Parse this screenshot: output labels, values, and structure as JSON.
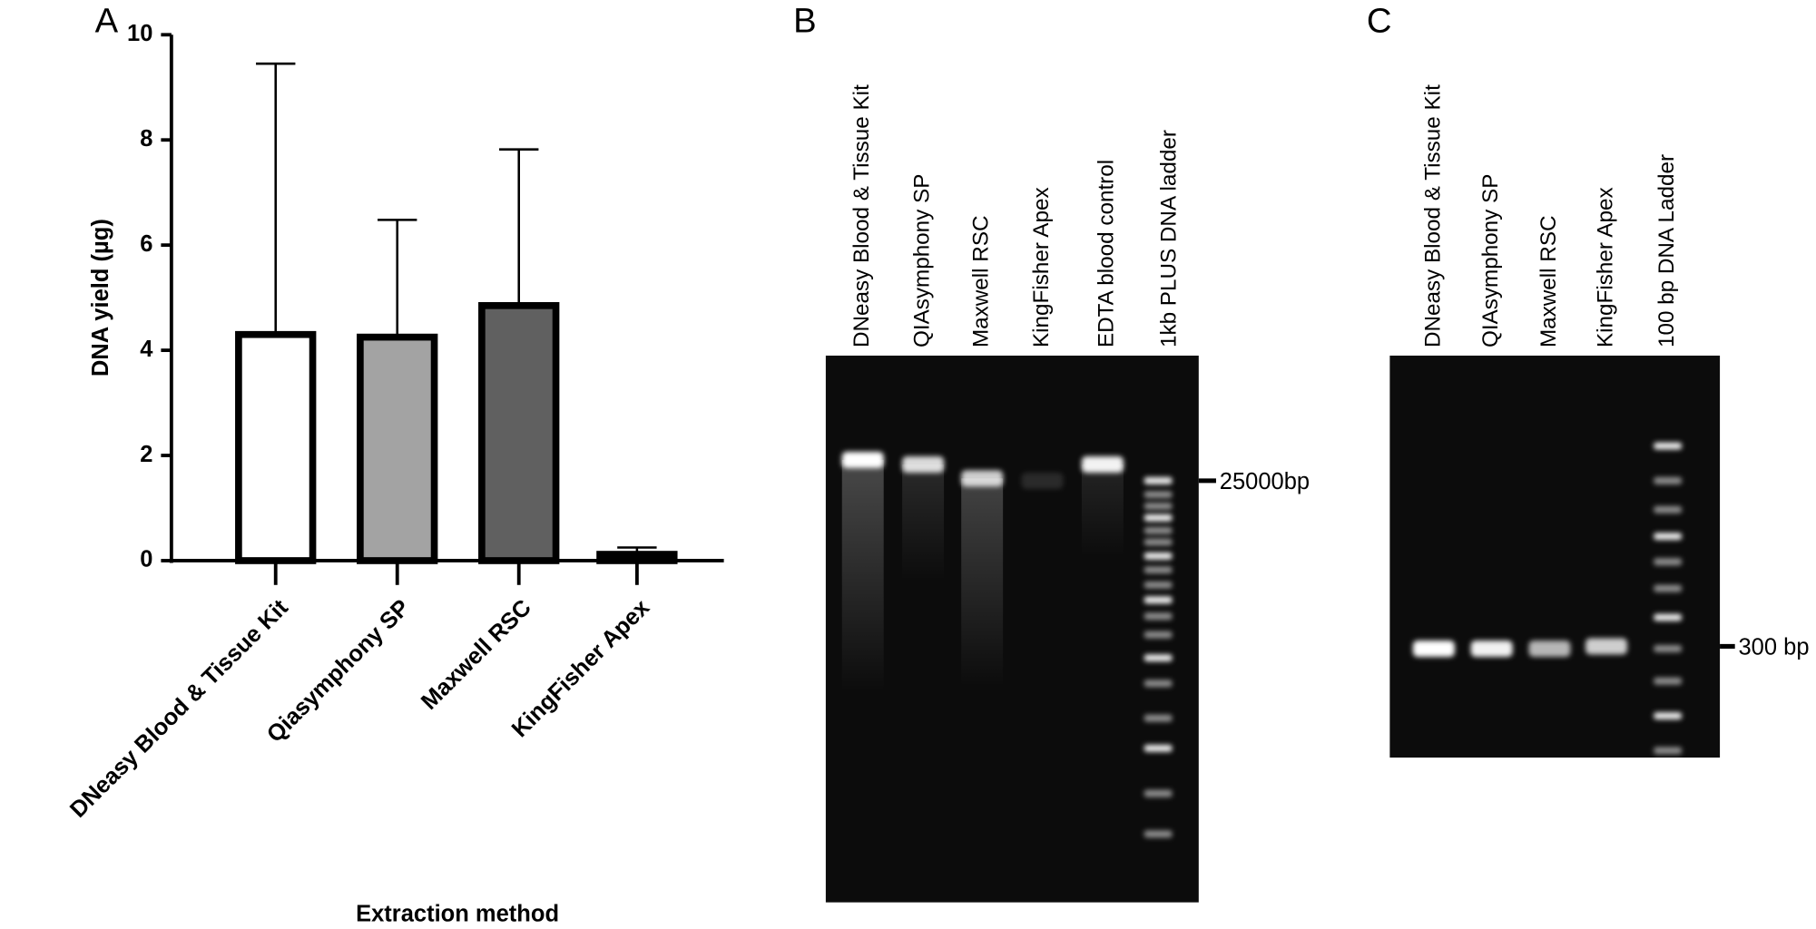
{
  "chart_data": {
    "type": "bar",
    "panel": "A",
    "xlabel": "Extraction method",
    "ylabel": "DNA yield (µg)",
    "categories": [
      "DNeasy Blood & Tissue Kit",
      "Qiasymphony SP",
      "Maxwell RSC",
      "KingFisher Apex"
    ],
    "values": [
      4.3,
      4.25,
      4.85,
      0.12
    ],
    "errors": [
      5.15,
      2.23,
      2.97,
      0.13
    ],
    "colors": [
      "#ffffff",
      "#a3a3a3",
      "#606060",
      "#ffffff"
    ],
    "ylim": [
      0,
      10
    ],
    "yticks": [
      0,
      2,
      4,
      6,
      8,
      10
    ]
  },
  "gels": [
    {
      "panel": "B",
      "lanes": [
        "DNeasy Blood & Tissue Kit",
        "QIAsymphony SP",
        "Maxwell RSC",
        "KingFisher Apex",
        "EDTA blood control",
        "1kb PLUS DNA ladder"
      ],
      "marker": "25000bp"
    },
    {
      "panel": "C",
      "lanes": [
        "DNeasy Blood & Tissue Kit",
        "QIAsymphony SP",
        "Maxwell RSC",
        "KingFisher Apex",
        "100 bp DNA Ladder"
      ],
      "marker": "300 bp"
    }
  ]
}
